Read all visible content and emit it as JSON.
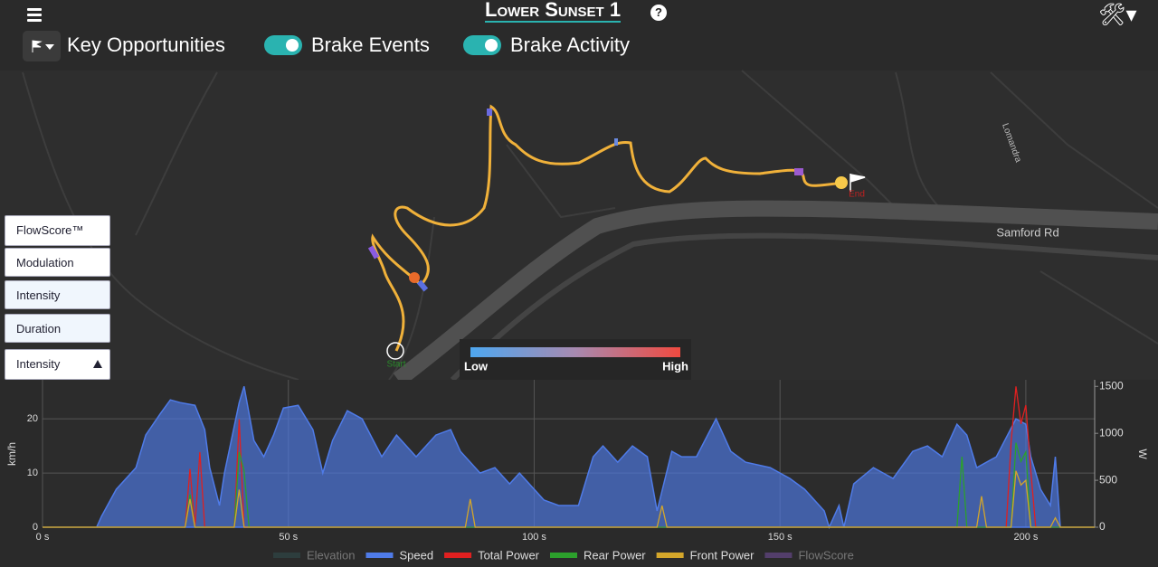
{
  "header": {
    "title": "Lower Sunset 1",
    "help": "?"
  },
  "toolbar": {
    "toggles": [
      "Key Opportunities",
      "Brake Events",
      "Brake Activity"
    ]
  },
  "menu": {
    "items": [
      "FlowScore™",
      "Modulation",
      "Intensity",
      "Duration",
      "Intensity"
    ]
  },
  "map": {
    "roads": [
      "Samford Rd",
      "Lomandra"
    ],
    "markers": [
      "Start",
      "End"
    ],
    "colorbar": {
      "low": "Low",
      "high": "High"
    }
  },
  "chart_data": {
    "type": "area",
    "ylabel": "km/h",
    "y2label": "W",
    "xlim": [
      0,
      214
    ],
    "ylim": [
      0,
      27.2
    ],
    "y2lim": [
      0,
      1570
    ],
    "xticks": [
      {
        "value": 0,
        "label": "0 s"
      },
      {
        "value": 50,
        "label": "50 s"
      },
      {
        "value": 100,
        "label": "100 s"
      },
      {
        "value": 150,
        "label": "150 s"
      },
      {
        "value": 200,
        "label": "200 s"
      }
    ],
    "yticks": [
      0,
      10,
      20
    ],
    "y2ticks": [
      0,
      500,
      1000,
      1500
    ],
    "grid": true,
    "series": [
      {
        "name": "Elevation",
        "color": "#2f4f4f",
        "visible": false
      },
      {
        "name": "Speed",
        "color": "#4f7be8",
        "x": [
          0,
          11,
          12,
          15,
          19,
          21,
          24,
          26,
          28,
          31,
          33,
          34,
          36,
          37,
          40,
          41,
          43,
          45,
          47,
          49,
          52,
          55,
          57,
          59,
          62,
          65,
          69,
          72,
          76,
          80,
          83,
          85,
          89,
          92,
          95,
          97,
          102,
          105,
          109,
          112,
          114,
          117,
          120,
          123,
          125,
          128,
          130,
          133,
          137,
          140,
          143,
          148,
          152,
          155,
          159,
          160,
          162,
          163,
          165,
          169,
          173,
          177,
          180,
          183,
          186,
          188,
          190,
          194,
          198,
          200,
          201,
          203,
          205,
          206,
          207,
          214
        ],
        "values": [
          0,
          0,
          2,
          7,
          11,
          17,
          21,
          23.5,
          23,
          22.5,
          18,
          11,
          4,
          10,
          23,
          26,
          16,
          13,
          17,
          22,
          22.5,
          18,
          10,
          16,
          21.5,
          20,
          13,
          17,
          13,
          17,
          18,
          14,
          10,
          11,
          8,
          10,
          5,
          4,
          4,
          13,
          15,
          12,
          15,
          13,
          3,
          14,
          13,
          13,
          20,
          14,
          12,
          11,
          9,
          7,
          3,
          0,
          4,
          0,
          8,
          11,
          9,
          14,
          15,
          13,
          19,
          17,
          11,
          13,
          20,
          19,
          13,
          7,
          4,
          13,
          0,
          0
        ]
      },
      {
        "name": "Total Power",
        "color": "#e02020",
        "axis": "y2",
        "x": [
          0,
          29,
          30,
          31,
          32,
          33,
          39,
          40,
          41,
          42,
          196,
          197,
          198,
          199,
          200,
          201,
          202,
          214
        ],
        "values": [
          0,
          0,
          620,
          0,
          800,
          0,
          0,
          1150,
          0,
          0,
          0,
          900,
          1500,
          1100,
          1300,
          600,
          0,
          0
        ]
      },
      {
        "name": "Rear Power",
        "color": "#2ca02c",
        "axis": "y2",
        "x": [
          0,
          29,
          30,
          31,
          39,
          40,
          41,
          42,
          186,
          187,
          188,
          197,
          198,
          199,
          200,
          201,
          214
        ],
        "values": [
          0,
          0,
          350,
          0,
          0,
          800,
          600,
          0,
          0,
          750,
          0,
          0,
          900,
          700,
          800,
          0,
          0
        ]
      },
      {
        "name": "Front Power",
        "color": "#d4a62a",
        "axis": "y2",
        "x": [
          0,
          29,
          30,
          31,
          39,
          40,
          41,
          86,
          87,
          88,
          125,
          126,
          127,
          190,
          191,
          192,
          197,
          198,
          199,
          200,
          201,
          205,
          206,
          207,
          214
        ],
        "values": [
          0,
          0,
          300,
          0,
          0,
          400,
          0,
          0,
          300,
          0,
          0,
          230,
          0,
          0,
          330,
          0,
          0,
          600,
          450,
          500,
          0,
          0,
          100,
          0,
          0
        ]
      },
      {
        "name": "FlowScore",
        "color": "#7b52ab",
        "visible": false
      }
    ]
  }
}
